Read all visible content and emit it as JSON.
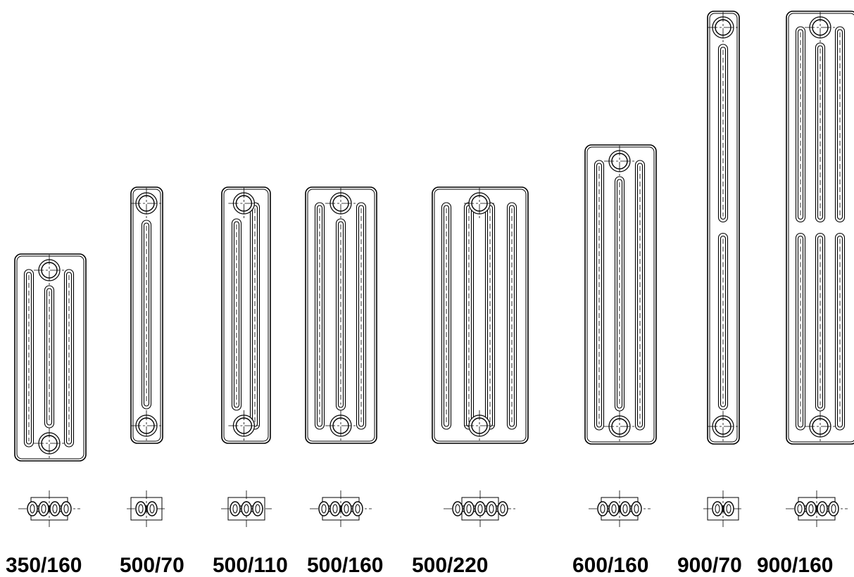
{
  "models": [
    {
      "id": "350-160",
      "label": "350/160",
      "columns": 3
    },
    {
      "id": "500-70",
      "label": "500/70",
      "columns": 1
    },
    {
      "id": "500-110",
      "label": "500/110",
      "columns": 2
    },
    {
      "id": "500-160",
      "label": "500/160",
      "columns": 3
    },
    {
      "id": "500-220",
      "label": "500/220",
      "columns": 4
    },
    {
      "id": "600-160",
      "label": "600/160",
      "columns": 3
    },
    {
      "id": "900-70",
      "label": "900/70",
      "columns": 1
    },
    {
      "id": "900-160",
      "label": "900/160",
      "columns": 3
    }
  ],
  "colors": {
    "line": "#000000",
    "background": "#ffffff"
  }
}
